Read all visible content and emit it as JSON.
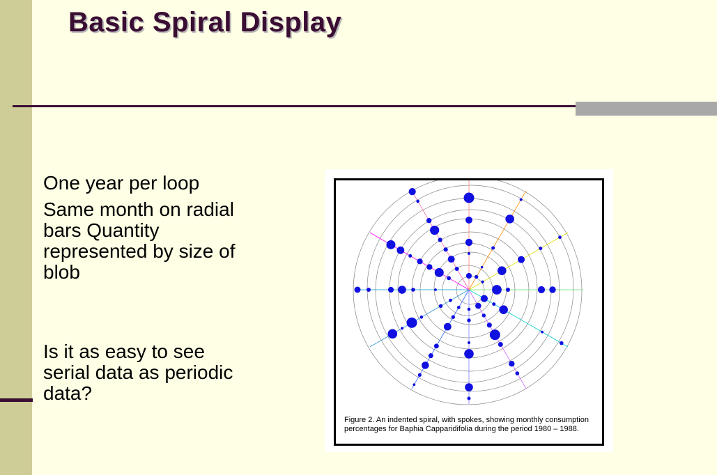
{
  "slide": {
    "title": "Basic Spiral Display",
    "bullets": [
      "One year per loop",
      "Same month on radial bars Quantity represented by size of blob",
      "Is it as easy to see serial data as periodic data?"
    ]
  },
  "figure": {
    "caption": "Figure 2. An indented spiral, with spokes, showing monthly consumption percentages for Baphia Capparidifolia during the period 1980 – 1988.",
    "spoke_colors": [
      "#FF8080",
      "#FF8800",
      "#DDDD00",
      "#66DD66",
      "#00CCCC",
      "#CC66FF",
      "#8080FF",
      "#3366FF",
      "#3399CC",
      "#0099CC",
      "#FF00FF",
      "#FF66AA"
    ],
    "blob_color": "#1010E0",
    "ring_color": "#888888"
  },
  "colors": {
    "background": "#FFFFE5",
    "title": "#3A0D33",
    "left_bar": "#CFCD97",
    "rule": "#3A0D33",
    "rule_accent": "#A8A8A8"
  }
}
